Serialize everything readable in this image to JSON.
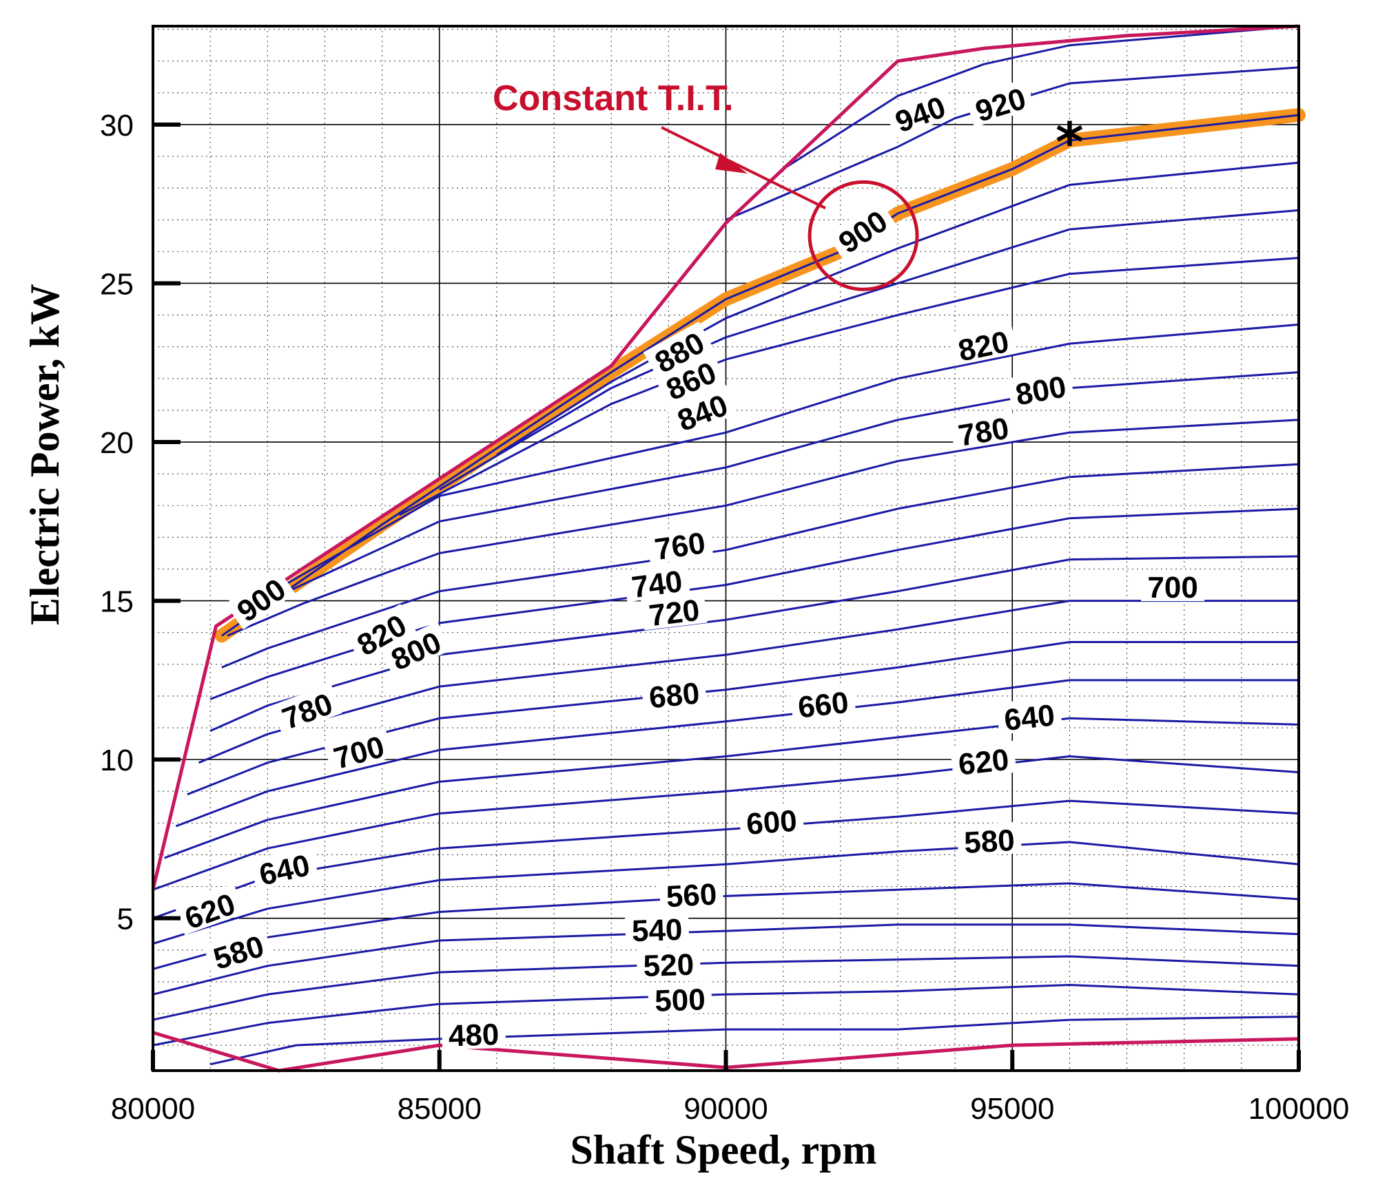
{
  "chart_data": {
    "type": "line",
    "subtype": "contour",
    "xlabel": "Shaft Speed, rpm",
    "ylabel": "Electric Power, kW",
    "xlim": [
      80000,
      100000
    ],
    "ylim": [
      0.2,
      33.1
    ],
    "xticks": [
      80000,
      85000,
      90000,
      95000,
      100000
    ],
    "xtick_labels": [
      "80000",
      "85000",
      "90000",
      "95000",
      "100000"
    ],
    "yticks": [
      5,
      10,
      15,
      20,
      25,
      30
    ],
    "ytick_labels": [
      "5",
      "10",
      "15",
      "20",
      "25",
      "30"
    ],
    "grid": true,
    "annotation": {
      "text": "Constant T.I.T.",
      "target": "900 contour",
      "circle_center": [
        92400,
        26.5
      ]
    },
    "marker": {
      "symbol": "*",
      "x": 96000,
      "y": 29.5
    },
    "colors": {
      "contour": "#1a1aa6",
      "highlight": "#f7941d",
      "boundary": "#c8175d",
      "annotation": "#c8102e"
    },
    "highlight_line": [
      [
        81200,
        13.9
      ],
      [
        84000,
        17.4
      ],
      [
        88000,
        22.2
      ],
      [
        90000,
        24.5
      ],
      [
        92000,
        26.0
      ],
      [
        93000,
        27.2
      ],
      [
        95000,
        28.6
      ],
      [
        96000,
        29.5
      ],
      [
        100000,
        30.3
      ]
    ],
    "boundary_left": [
      [
        80000,
        5.9
      ],
      [
        81100,
        14.2
      ],
      [
        82600,
        16.0
      ],
      [
        88000,
        22.4
      ],
      [
        90000,
        26.9
      ],
      [
        93000,
        32.0
      ],
      [
        94500,
        32.4
      ],
      [
        97000,
        32.8
      ],
      [
        100000,
        33.1
      ]
    ],
    "boundary_bottom": [
      [
        80000,
        1.4
      ],
      [
        82200,
        0.2
      ],
      [
        85000,
        1.0
      ],
      [
        90000,
        0.3
      ],
      [
        95000,
        1.0
      ],
      [
        100000,
        1.2
      ]
    ],
    "contours": [
      {
        "level": 480,
        "label": "480",
        "points": [
          [
            81000,
            0.4
          ],
          [
            82500,
            1.0
          ],
          [
            85000,
            1.2
          ],
          [
            90000,
            1.5
          ],
          [
            93000,
            1.5
          ],
          [
            96000,
            1.8
          ],
          [
            100000,
            1.9
          ]
        ]
      },
      {
        "level": 500,
        "label": "500",
        "points": [
          [
            80000,
            1.0
          ],
          [
            82000,
            1.7
          ],
          [
            85000,
            2.3
          ],
          [
            90000,
            2.6
          ],
          [
            93000,
            2.7
          ],
          [
            96000,
            2.9
          ],
          [
            100000,
            2.6
          ]
        ]
      },
      {
        "level": 520,
        "label": "520",
        "points": [
          [
            80000,
            1.8
          ],
          [
            82000,
            2.6
          ],
          [
            85000,
            3.3
          ],
          [
            90000,
            3.6
          ],
          [
            93000,
            3.7
          ],
          [
            96000,
            3.8
          ],
          [
            100000,
            3.5
          ]
        ]
      },
      {
        "level": 540,
        "label": "540",
        "points": [
          [
            80000,
            2.6
          ],
          [
            82000,
            3.5
          ],
          [
            85000,
            4.3
          ],
          [
            90000,
            4.6
          ],
          [
            93000,
            4.8
          ],
          [
            96000,
            4.8
          ],
          [
            100000,
            4.5
          ]
        ]
      },
      {
        "level": 560,
        "label": "560",
        "points": [
          [
            80000,
            3.4
          ],
          [
            82000,
            4.4
          ],
          [
            85000,
            5.2
          ],
          [
            90000,
            5.7
          ],
          [
            93000,
            5.9
          ],
          [
            96000,
            6.1
          ],
          [
            100000,
            5.6
          ]
        ]
      },
      {
        "level": 580,
        "label": "580",
        "points": [
          [
            80000,
            4.2
          ],
          [
            82000,
            5.3
          ],
          [
            85000,
            6.2
          ],
          [
            90000,
            6.7
          ],
          [
            93000,
            7.1
          ],
          [
            96000,
            7.4
          ],
          [
            100000,
            6.7
          ]
        ]
      },
      {
        "level": 600,
        "label": "600",
        "points": [
          [
            80000,
            5.0
          ],
          [
            82000,
            6.3
          ],
          [
            85000,
            7.2
          ],
          [
            90000,
            7.8
          ],
          [
            93000,
            8.2
          ],
          [
            96000,
            8.7
          ],
          [
            100000,
            8.3
          ]
        ]
      },
      {
        "level": 620,
        "label": "620",
        "points": [
          [
            80000,
            5.9
          ],
          [
            82000,
            7.2
          ],
          [
            85000,
            8.3
          ],
          [
            90000,
            9.0
          ],
          [
            93000,
            9.5
          ],
          [
            96000,
            10.1
          ],
          [
            100000,
            9.6
          ]
        ]
      },
      {
        "level": 640,
        "label": "640",
        "points": [
          [
            80200,
            6.9
          ],
          [
            82000,
            8.1
          ],
          [
            85000,
            9.3
          ],
          [
            90000,
            10.1
          ],
          [
            93000,
            10.7
          ],
          [
            96000,
            11.3
          ],
          [
            100000,
            11.1
          ]
        ]
      },
      {
        "level": 660,
        "label": "660",
        "points": [
          [
            80400,
            7.9
          ],
          [
            82000,
            9.0
          ],
          [
            85000,
            10.3
          ],
          [
            90000,
            11.2
          ],
          [
            93000,
            11.8
          ],
          [
            96000,
            12.5
          ],
          [
            100000,
            12.5
          ]
        ]
      },
      {
        "level": 680,
        "label": "680",
        "points": [
          [
            80600,
            8.9
          ],
          [
            82000,
            9.9
          ],
          [
            85000,
            11.3
          ],
          [
            90000,
            12.2
          ],
          [
            93000,
            12.9
          ],
          [
            96000,
            13.7
          ],
          [
            100000,
            13.7
          ]
        ]
      },
      {
        "level": 700,
        "label": "700",
        "points": [
          [
            80800,
            9.9
          ],
          [
            82000,
            10.8
          ],
          [
            85000,
            12.3
          ],
          [
            90000,
            13.3
          ],
          [
            93000,
            14.1
          ],
          [
            96000,
            15.0
          ],
          [
            100000,
            15.0
          ]
        ]
      },
      {
        "level": 720,
        "label": "720",
        "points": [
          [
            81000,
            10.9
          ],
          [
            82000,
            11.7
          ],
          [
            85000,
            13.3
          ],
          [
            90000,
            14.4
          ],
          [
            93000,
            15.3
          ],
          [
            96000,
            16.3
          ],
          [
            100000,
            16.4
          ]
        ]
      },
      {
        "level": 740,
        "label": "740",
        "points": [
          [
            81000,
            11.9
          ],
          [
            82000,
            12.6
          ],
          [
            85000,
            14.3
          ],
          [
            90000,
            15.5
          ],
          [
            93000,
            16.6
          ],
          [
            96000,
            17.6
          ],
          [
            100000,
            17.9
          ]
        ]
      },
      {
        "level": 760,
        "label": "760",
        "points": [
          [
            81200,
            12.9
          ],
          [
            82000,
            13.5
          ],
          [
            85000,
            15.3
          ],
          [
            90000,
            16.6
          ],
          [
            93000,
            17.9
          ],
          [
            96000,
            18.9
          ],
          [
            100000,
            19.3
          ]
        ]
      },
      {
        "level": 780,
        "label": "780",
        "points": [
          [
            81300,
            13.9
          ],
          [
            82600,
            14.9
          ],
          [
            85000,
            16.5
          ],
          [
            90000,
            18.0
          ],
          [
            93000,
            19.4
          ],
          [
            96000,
            20.3
          ],
          [
            100000,
            20.7
          ]
        ]
      },
      {
        "level": 800,
        "label": "800",
        "points": [
          [
            82000,
            15.0
          ],
          [
            85000,
            17.5
          ],
          [
            90000,
            19.2
          ],
          [
            93000,
            20.7
          ],
          [
            96000,
            21.7
          ],
          [
            100000,
            22.2
          ]
        ]
      },
      {
        "level": 820,
        "label": "820",
        "points": [
          [
            82300,
            15.5
          ],
          [
            85000,
            18.3
          ],
          [
            90000,
            20.3
          ],
          [
            93000,
            22.0
          ],
          [
            96000,
            23.1
          ],
          [
            100000,
            23.7
          ]
        ]
      },
      {
        "level": 840,
        "label": "840",
        "points": [
          [
            84300,
            17.7
          ],
          [
            88000,
            21.2
          ],
          [
            90000,
            22.6
          ],
          [
            93000,
            24.0
          ],
          [
            96000,
            25.3
          ],
          [
            100000,
            25.8
          ]
        ]
      },
      {
        "level": 860,
        "label": "860",
        "points": [
          [
            85000,
            18.5
          ],
          [
            88000,
            21.7
          ],
          [
            90000,
            23.3
          ],
          [
            93000,
            25.0
          ],
          [
            96000,
            26.7
          ],
          [
            100000,
            27.3
          ]
        ]
      },
      {
        "level": 880,
        "label": "880",
        "points": [
          [
            86000,
            19.6
          ],
          [
            88000,
            21.9
          ],
          [
            90000,
            23.9
          ],
          [
            93000,
            26.1
          ],
          [
            96000,
            28.1
          ],
          [
            100000,
            28.8
          ]
        ]
      },
      {
        "level": 900,
        "label": "900",
        "points": [
          [
            81200,
            13.9
          ],
          [
            84000,
            17.4
          ],
          [
            88000,
            22.2
          ],
          [
            90000,
            24.5
          ],
          [
            92000,
            26.0
          ],
          [
            93000,
            27.2
          ],
          [
            95000,
            28.6
          ],
          [
            96000,
            29.5
          ],
          [
            100000,
            30.3
          ]
        ]
      },
      {
        "level": 920,
        "label": "920",
        "points": [
          [
            90000,
            27.0
          ],
          [
            93000,
            29.3
          ],
          [
            94000,
            30.2
          ],
          [
            96000,
            31.3
          ],
          [
            100000,
            31.8
          ]
        ]
      },
      {
        "level": 940,
        "label": "940",
        "points": [
          [
            91000,
            28.6
          ],
          [
            93000,
            30.9
          ],
          [
            94500,
            31.9
          ],
          [
            96000,
            32.5
          ],
          [
            100000,
            33.1
          ]
        ]
      }
    ],
    "contour_labels": [
      {
        "text": "480",
        "x": 85600,
        "y": 1.3
      },
      {
        "text": "500",
        "x": 89200,
        "y": 2.4
      },
      {
        "text": "520",
        "x": 89000,
        "y": 3.5
      },
      {
        "text": "540",
        "x": 88800,
        "y": 4.6
      },
      {
        "text": "560",
        "x": 89400,
        "y": 5.7
      },
      {
        "text": "580",
        "x": 81500,
        "y": 3.9
      },
      {
        "text": "580",
        "x": 94600,
        "y": 7.4
      },
      {
        "text": "600",
        "x": 90800,
        "y": 8.0
      },
      {
        "text": "620",
        "x": 81000,
        "y": 5.2
      },
      {
        "text": "620",
        "x": 94500,
        "y": 9.9
      },
      {
        "text": "640",
        "x": 82300,
        "y": 6.5
      },
      {
        "text": "640",
        "x": 95300,
        "y": 11.3
      },
      {
        "text": "660",
        "x": 91700,
        "y": 11.7
      },
      {
        "text": "680",
        "x": 89100,
        "y": 12.0
      },
      {
        "text": "700",
        "x": 83600,
        "y": 10.2
      },
      {
        "text": "700",
        "x": 97800,
        "y": 15.4
      },
      {
        "text": "720",
        "x": 89100,
        "y": 14.6
      },
      {
        "text": "740",
        "x": 88800,
        "y": 15.5
      },
      {
        "text": "760",
        "x": 89200,
        "y": 16.7
      },
      {
        "text": "780",
        "x": 82700,
        "y": 11.5
      },
      {
        "text": "780",
        "x": 94500,
        "y": 20.3
      },
      {
        "text": "800",
        "x": 84600,
        "y": 13.4
      },
      {
        "text": "800",
        "x": 95500,
        "y": 21.6
      },
      {
        "text": "820",
        "x": 84000,
        "y": 13.9
      },
      {
        "text": "820",
        "x": 94500,
        "y": 23.0
      },
      {
        "text": "840",
        "x": 89600,
        "y": 20.9
      },
      {
        "text": "860",
        "x": 89400,
        "y": 21.9
      },
      {
        "text": "880",
        "x": 89200,
        "y": 22.8
      },
      {
        "text": "900",
        "x": 81900,
        "y": 15.0
      },
      {
        "text": "900",
        "x": 92400,
        "y": 26.6
      },
      {
        "text": "920",
        "x": 94800,
        "y": 30.6
      },
      {
        "text": "940",
        "x": 93400,
        "y": 30.3
      }
    ]
  }
}
